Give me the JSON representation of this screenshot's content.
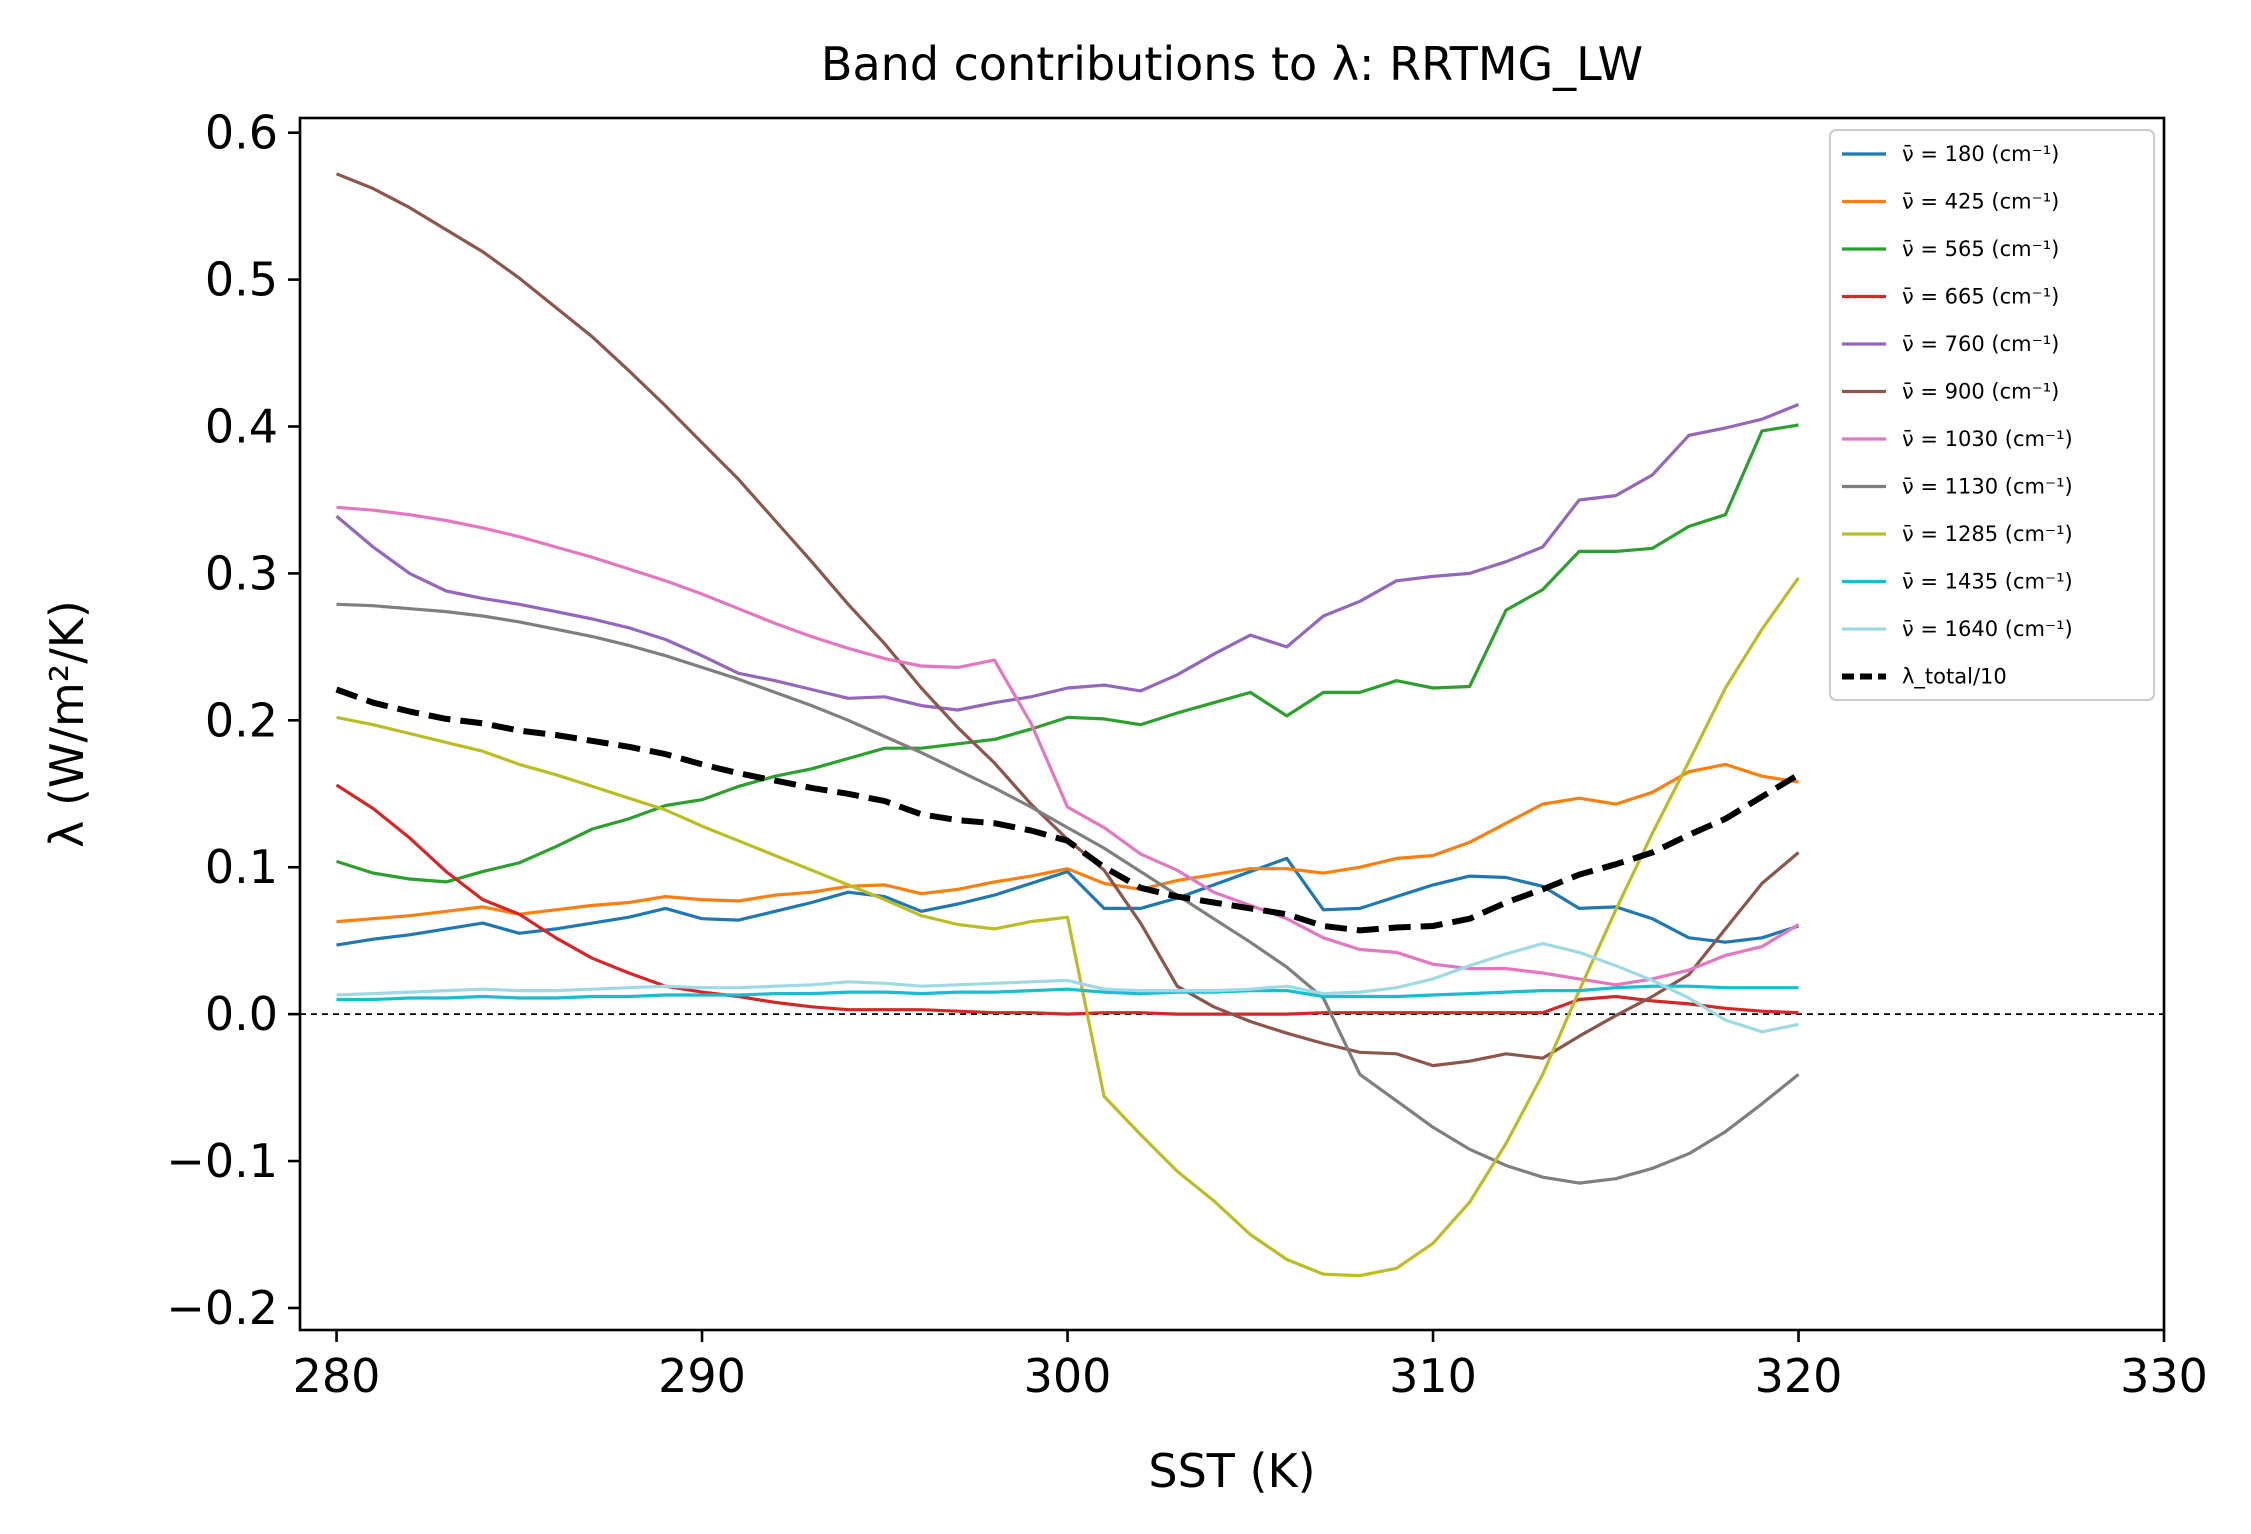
{
  "chart_data": {
    "type": "line",
    "title": "Band contributions to λ: RRTMG_LW",
    "xlabel": "SST (K)",
    "ylabel": "λ (W/m²/K)",
    "xlim": [
      279,
      330
    ],
    "ylim": [
      -0.215,
      0.61
    ],
    "xticks": [
      280,
      290,
      300,
      310,
      320,
      330
    ],
    "xtick_labels": [
      "280",
      "290",
      "300",
      "310",
      "320",
      "330"
    ],
    "yticks": [
      -0.2,
      -0.1,
      0.0,
      0.1,
      0.2,
      0.3,
      0.4,
      0.5,
      0.6
    ],
    "ytick_labels": [
      "−0.2",
      "−0.1",
      "0.0",
      "0.1",
      "0.2",
      "0.3",
      "0.4",
      "0.5",
      "0.6"
    ],
    "grid": false,
    "legend_position": "top-right",
    "zero_line": {
      "y": 0,
      "style": "dashed",
      "color": "#000000"
    },
    "x": [
      280,
      281,
      282,
      283,
      284,
      285,
      286,
      287,
      288,
      289,
      290,
      291,
      292,
      293,
      294,
      295,
      296,
      297,
      298,
      299,
      300,
      301,
      302,
      303,
      304,
      305,
      306,
      307,
      308,
      309,
      310,
      311,
      312,
      313,
      314,
      315,
      316,
      317,
      318,
      319,
      320
    ],
    "series": [
      {
        "name": "ν̄ = 180 (cm⁻¹)",
        "color": "#1f77b4",
        "values": [
          0.047,
          0.051,
          0.054,
          0.058,
          0.062,
          0.055,
          0.058,
          0.062,
          0.066,
          0.072,
          0.065,
          0.064,
          0.07,
          0.076,
          0.083,
          0.08,
          0.07,
          0.075,
          0.081,
          0.089,
          0.097,
          0.072,
          0.072,
          0.079,
          0.088,
          0.097,
          0.106,
          0.071,
          0.072,
          0.08,
          0.088,
          0.094,
          0.093,
          0.087,
          0.072,
          0.073,
          0.065,
          0.052,
          0.049,
          0.052,
          0.06
        ]
      },
      {
        "name": "ν̄ = 425 (cm⁻¹)",
        "color": "#ff7f0e",
        "values": [
          0.063,
          0.065,
          0.067,
          0.07,
          0.073,
          0.068,
          0.071,
          0.074,
          0.076,
          0.08,
          0.078,
          0.077,
          0.081,
          0.083,
          0.087,
          0.088,
          0.082,
          0.085,
          0.09,
          0.094,
          0.099,
          0.089,
          0.085,
          0.091,
          0.095,
          0.099,
          0.099,
          0.096,
          0.1,
          0.106,
          0.108,
          0.117,
          0.13,
          0.143,
          0.147,
          0.143,
          0.151,
          0.165,
          0.17,
          0.162,
          0.158
        ]
      },
      {
        "name": "ν̄ = 565 (cm⁻¹)",
        "color": "#2ca02c",
        "values": [
          0.104,
          0.096,
          0.092,
          0.09,
          0.097,
          0.103,
          0.114,
          0.126,
          0.133,
          0.142,
          0.146,
          0.155,
          0.162,
          0.167,
          0.174,
          0.181,
          0.181,
          0.184,
          0.187,
          0.194,
          0.202,
          0.201,
          0.197,
          0.205,
          0.212,
          0.219,
          0.203,
          0.219,
          0.219,
          0.227,
          0.222,
          0.223,
          0.275,
          0.289,
          0.315,
          0.315,
          0.317,
          0.332,
          0.34,
          0.397,
          0.401
        ]
      },
      {
        "name": "ν̄ = 665 (cm⁻¹)",
        "color": "#d62728",
        "values": [
          0.156,
          0.14,
          0.12,
          0.097,
          0.078,
          0.068,
          0.052,
          0.038,
          0.028,
          0.019,
          0.015,
          0.012,
          0.008,
          0.005,
          0.003,
          0.003,
          0.003,
          0.002,
          0.001,
          0.001,
          0.0,
          0.001,
          0.001,
          0.0,
          0.0,
          0.0,
          0.0,
          0.001,
          0.001,
          0.001,
          0.001,
          0.001,
          0.001,
          0.001,
          0.01,
          0.012,
          0.009,
          0.007,
          0.004,
          0.002,
          0.001
        ]
      },
      {
        "name": "ν̄ = 760 (cm⁻¹)",
        "color": "#9467bd",
        "values": [
          0.339,
          0.318,
          0.3,
          0.288,
          0.283,
          0.279,
          0.274,
          0.269,
          0.263,
          0.255,
          0.244,
          0.232,
          0.227,
          0.221,
          0.215,
          0.216,
          0.21,
          0.207,
          0.212,
          0.216,
          0.222,
          0.224,
          0.22,
          0.231,
          0.245,
          0.258,
          0.25,
          0.271,
          0.281,
          0.295,
          0.298,
          0.3,
          0.308,
          0.318,
          0.35,
          0.353,
          0.367,
          0.394,
          0.399,
          0.405,
          0.415
        ]
      },
      {
        "name": "ν̄ = 900 (cm⁻¹)",
        "color": "#8c564b",
        "values": [
          0.572,
          0.562,
          0.549,
          0.534,
          0.519,
          0.501,
          0.481,
          0.461,
          0.438,
          0.414,
          0.389,
          0.364,
          0.336,
          0.308,
          0.279,
          0.252,
          0.222,
          0.195,
          0.171,
          0.143,
          0.119,
          0.098,
          0.062,
          0.019,
          0.005,
          -0.005,
          -0.013,
          -0.02,
          -0.026,
          -0.027,
          -0.035,
          -0.032,
          -0.027,
          -0.03,
          -0.015,
          -0.001,
          0.012,
          0.027,
          0.058,
          0.089,
          0.11
        ]
      },
      {
        "name": "ν̄ = 1030 (cm⁻¹)",
        "color": "#e377c2",
        "values": [
          0.345,
          0.343,
          0.34,
          0.336,
          0.331,
          0.325,
          0.318,
          0.311,
          0.303,
          0.295,
          0.286,
          0.276,
          0.266,
          0.257,
          0.249,
          0.242,
          0.237,
          0.236,
          0.241,
          0.198,
          0.141,
          0.127,
          0.109,
          0.098,
          0.083,
          0.074,
          0.065,
          0.052,
          0.044,
          0.042,
          0.034,
          0.031,
          0.031,
          0.028,
          0.024,
          0.02,
          0.024,
          0.03,
          0.04,
          0.046,
          0.061
        ]
      },
      {
        "name": "ν̄ = 1130 (cm⁻¹)",
        "color": "#7f7f7f",
        "values": [
          0.279,
          0.278,
          0.276,
          0.274,
          0.271,
          0.267,
          0.262,
          0.257,
          0.251,
          0.244,
          0.236,
          0.228,
          0.219,
          0.21,
          0.2,
          0.189,
          0.178,
          0.166,
          0.154,
          0.141,
          0.127,
          0.113,
          0.097,
          0.081,
          0.065,
          0.049,
          0.032,
          0.011,
          -0.041,
          -0.059,
          -0.077,
          -0.092,
          -0.103,
          -0.111,
          -0.115,
          -0.112,
          -0.105,
          -0.095,
          -0.08,
          -0.061,
          -0.041
        ]
      },
      {
        "name": "ν̄ = 1285 (cm⁻¹)",
        "color": "#bcbd22",
        "values": [
          0.202,
          0.197,
          0.191,
          0.185,
          0.179,
          0.17,
          0.163,
          0.155,
          0.147,
          0.139,
          0.128,
          0.118,
          0.108,
          0.098,
          0.088,
          0.078,
          0.067,
          0.061,
          0.058,
          0.063,
          0.066,
          -0.056,
          -0.082,
          -0.107,
          -0.127,
          -0.15,
          -0.167,
          -0.177,
          -0.178,
          -0.173,
          -0.156,
          -0.128,
          -0.088,
          -0.041,
          0.016,
          0.071,
          0.123,
          0.172,
          0.222,
          0.262,
          0.297
        ]
      },
      {
        "name": "ν̄ = 1435 (cm⁻¹)",
        "color": "#17becf",
        "values": [
          0.01,
          0.01,
          0.011,
          0.011,
          0.012,
          0.011,
          0.011,
          0.012,
          0.012,
          0.013,
          0.013,
          0.013,
          0.014,
          0.014,
          0.015,
          0.015,
          0.014,
          0.015,
          0.015,
          0.016,
          0.017,
          0.015,
          0.014,
          0.015,
          0.015,
          0.016,
          0.016,
          0.012,
          0.012,
          0.012,
          0.013,
          0.014,
          0.015,
          0.016,
          0.016,
          0.018,
          0.019,
          0.019,
          0.018,
          0.018,
          0.018
        ]
      },
      {
        "name": "ν̄ = 1640 (cm⁻¹)",
        "color": "#9edae5",
        "values": [
          0.013,
          0.014,
          0.015,
          0.016,
          0.017,
          0.016,
          0.016,
          0.017,
          0.018,
          0.019,
          0.018,
          0.018,
          0.019,
          0.02,
          0.022,
          0.021,
          0.019,
          0.02,
          0.021,
          0.022,
          0.023,
          0.017,
          0.016,
          0.016,
          0.016,
          0.017,
          0.019,
          0.014,
          0.015,
          0.018,
          0.024,
          0.033,
          0.041,
          0.048,
          0.042,
          0.033,
          0.023,
          0.011,
          -0.004,
          -0.012,
          -0.007
        ]
      },
      {
        "name": "λ_total/10",
        "color": "#000000",
        "dashed": true,
        "width": 6,
        "values": [
          0.221,
          0.212,
          0.206,
          0.201,
          0.198,
          0.193,
          0.19,
          0.186,
          0.182,
          0.177,
          0.17,
          0.164,
          0.159,
          0.154,
          0.15,
          0.145,
          0.136,
          0.132,
          0.13,
          0.125,
          0.118,
          0.1,
          0.086,
          0.08,
          0.076,
          0.072,
          0.068,
          0.06,
          0.057,
          0.059,
          0.06,
          0.065,
          0.076,
          0.085,
          0.095,
          0.102,
          0.11,
          0.122,
          0.133,
          0.148,
          0.163
        ]
      }
    ]
  }
}
